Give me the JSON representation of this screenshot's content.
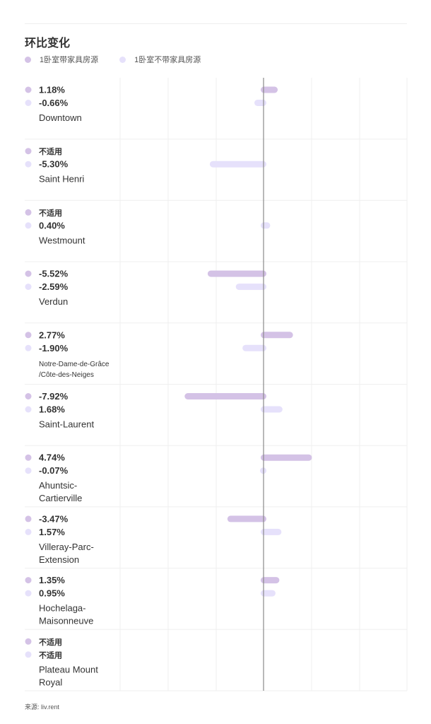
{
  "title": "环比变化",
  "source": "来源: liv.rent",
  "colors": {
    "furnished": "#d4c2e6",
    "unfurnished": "#e6e1fb"
  },
  "chart_data": {
    "type": "bar",
    "title": "环比变化",
    "orientation": "horizontal",
    "unit": "%",
    "xlim": [
      -15,
      15
    ],
    "grid": true,
    "legend": "top-left",
    "not_applicable_label": "不适用",
    "categories": [
      "Downtown",
      "Saint Henri",
      "Westmount",
      "Verdun",
      "Notre-Dame-de-Grâce /Côte-des-Neiges",
      "Saint-Laurent",
      "Ahuntsic-Cartierville",
      "Villeray-Parc-Extension",
      "Hochelaga-Maisonneuve",
      "Plateau Mount Royal"
    ],
    "label_lines": [
      [
        "Downtown"
      ],
      [
        "Saint Henri"
      ],
      [
        "Westmount"
      ],
      [
        "Verdun"
      ],
      [
        "Notre-Dame-de-Grâce",
        "/Côte-des-Neiges"
      ],
      [
        "Saint-Laurent"
      ],
      [
        "Ahuntsic-",
        "Cartierville"
      ],
      [
        "Villeray-Parc-",
        "Extension"
      ],
      [
        "Hochelaga-",
        "Maisonneuve"
      ],
      [
        "Plateau Mount",
        "Royal"
      ]
    ],
    "series": [
      {
        "name": "1卧室带家具房源",
        "values": [
          1.18,
          null,
          null,
          -5.52,
          2.77,
          -7.92,
          4.74,
          -3.47,
          1.35,
          null
        ],
        "labels": [
          "1.18%",
          "不适用",
          "不适用",
          "-5.52%",
          "2.77%",
          "-7.92%",
          "4.74%",
          "-3.47%",
          "1.35%",
          "不适用"
        ]
      },
      {
        "name": "1卧室不带家具房源",
        "values": [
          -0.66,
          -5.3,
          0.4,
          -2.59,
          -1.9,
          1.68,
          -0.07,
          1.57,
          0.95,
          null
        ],
        "labels": [
          "-0.66%",
          "-5.30%",
          "0.40%",
          "-2.59%",
          "-1.90%",
          "1.68%",
          "-0.07%",
          "1.57%",
          "0.95%",
          "不适用"
        ]
      }
    ]
  }
}
